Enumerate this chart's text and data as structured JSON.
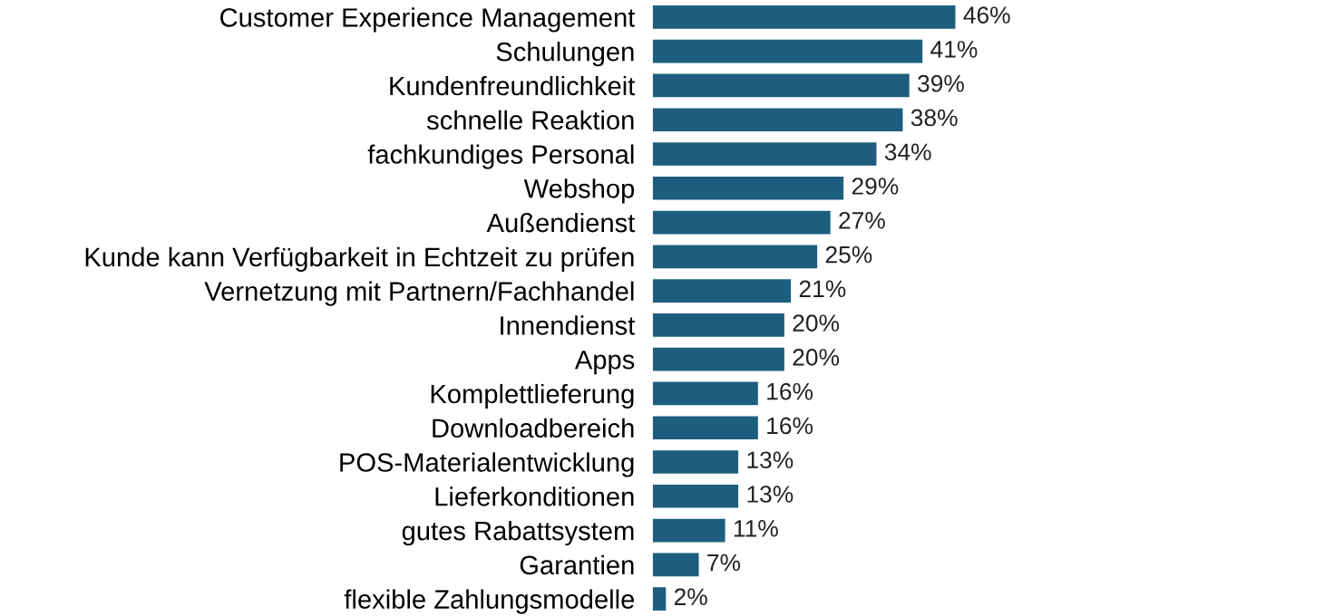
{
  "chart_data": {
    "type": "bar",
    "orientation": "horizontal",
    "categories": [
      "Customer Experience Management",
      "Schulungen",
      "Kundenfreundlichkeit",
      "schnelle Reaktion",
      "fachkundiges Personal",
      "Webshop",
      "Außendienst",
      "Kunde kann Verfügbarkeit in Echtzeit zu prüfen",
      "Vernetzung mit Partnern/Fachhandel",
      "Innendienst",
      "Apps",
      "Komplettlieferung",
      "Downloadbereich",
      "POS-Materialentwicklung",
      "Lieferkonditionen",
      "gutes Rabattsystem",
      "Garantien",
      "flexible Zahlungsmodelle"
    ],
    "values": [
      46,
      41,
      39,
      38,
      34,
      29,
      27,
      25,
      21,
      20,
      20,
      16,
      16,
      13,
      13,
      11,
      7,
      2
    ],
    "value_labels": [
      "46%",
      "41%",
      "39%",
      "38%",
      "34%",
      "29%",
      "27%",
      "25%",
      "21%",
      "20%",
      "20%",
      "16%",
      "16%",
      "13%",
      "13%",
      "11%",
      "7%",
      "2%"
    ],
    "color": "#1d5e7e",
    "tick_labels": "y",
    "grid": false
  }
}
